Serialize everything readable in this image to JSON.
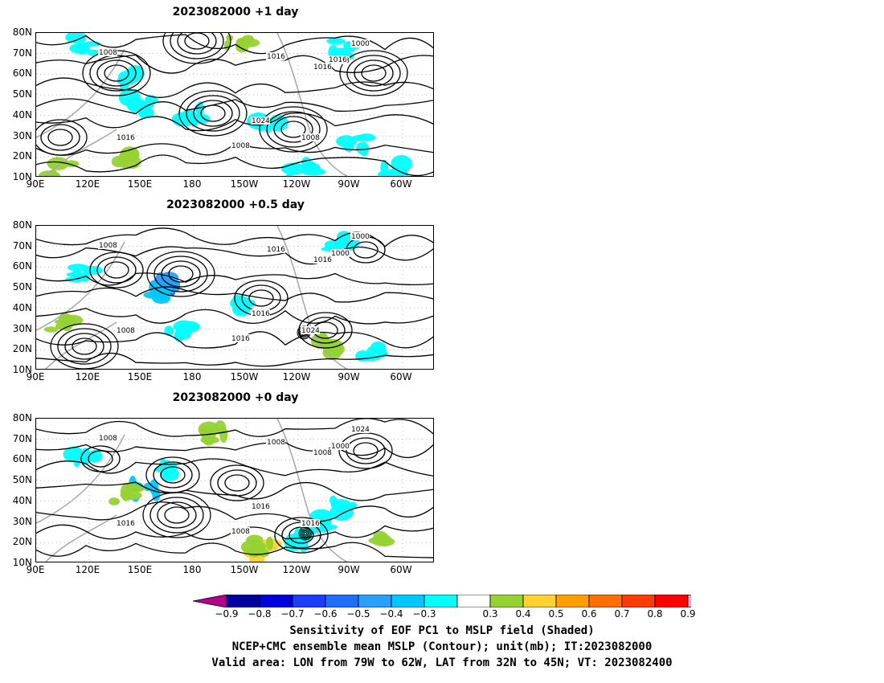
{
  "panels": [
    {
      "title": "2023082000  +1 day",
      "contour_labels": [
        "1008",
        "1016",
        "1016",
        "1008",
        "1000",
        "1016",
        "1024",
        "1008",
        "1008",
        "1016"
      ]
    },
    {
      "title": "2023082000  +0.5 day",
      "contour_labels": [
        "1008",
        "1016",
        "1008",
        "1000",
        "1000",
        "1016",
        "1016",
        "1024",
        "1016"
      ]
    },
    {
      "title": "2023082000  +0 day",
      "contour_labels": [
        "1008",
        "1008",
        "1016",
        "1000",
        "1024",
        "1008",
        "1016",
        "1016",
        "1008"
      ]
    }
  ],
  "lat_labels": [
    "80N",
    "70N",
    "60N",
    "50N",
    "40N",
    "30N",
    "20N",
    "10N"
  ],
  "lon_labels": [
    "90E",
    "120E",
    "150E",
    "180",
    "150W",
    "120W",
    "90W",
    "60W"
  ],
  "colorbar": {
    "labels": [
      "−0.9",
      "−0.8",
      "−0.7",
      "−0.6",
      "−0.5",
      "−0.4",
      "−0.3",
      "0.3",
      "0.4",
      "0.5",
      "0.6",
      "0.7",
      "0.8",
      "0.9"
    ],
    "colors": [
      "#0000a0",
      "#0000dc",
      "#1e3cff",
      "#1e6eff",
      "#28a0ff",
      "#00c8ff",
      "#00ffff",
      "#ffffff",
      "#96d232",
      "#ffd232",
      "#ffa000",
      "#ff6e00",
      "#ff3c00",
      "#ff0000"
    ],
    "under_color": "#b4008c",
    "over_color": "#ffa0c8"
  },
  "caption": {
    "line1": "Sensitivity of EOF PC1 to MSLP field (Shaded)",
    "line2": "NCEP+CMC ensemble mean MSLP (Contour); unit(mb); IT:2023082000",
    "line3": "Valid area: LON from 79W to 62W, LAT from 32N to 45N; VT: 2023082400"
  }
}
